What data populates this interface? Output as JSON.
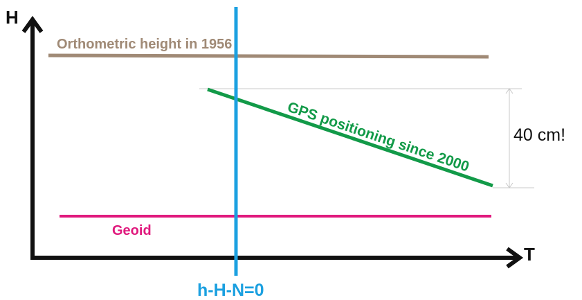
{
  "axes": {
    "y_label": "H",
    "x_label": "T"
  },
  "lines": {
    "orthometric": {
      "label": "Orthometric height in 1956",
      "color": "#a08a76"
    },
    "gps": {
      "label": "GPS positioning since 2000",
      "color": "#129a48"
    },
    "geoid": {
      "label": "Geoid",
      "color": "#e0197d"
    },
    "vertical": {
      "label": "h-H-N=0",
      "color": "#1ba0e0"
    }
  },
  "dimension": {
    "label": "40 cm!"
  }
}
